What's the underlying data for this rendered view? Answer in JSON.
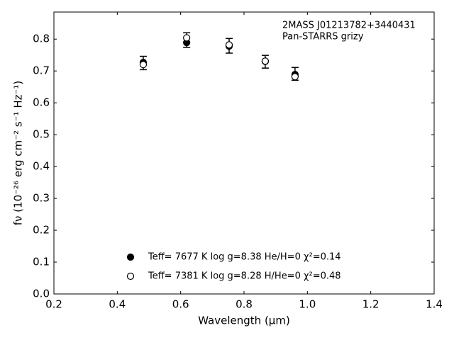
{
  "chart_data": {
    "type": "scatter",
    "xlabel": "Wavelength (μm)",
    "ylabel": "fν (10⁻²⁶ erg cm⁻² s⁻¹ Hz⁻¹)",
    "annotations": [
      "2MASS J01213782+3440431",
      "Pan-STARRS grizy"
    ],
    "x": [
      0.482,
      0.619,
      0.753,
      0.867,
      0.961
    ],
    "series": [
      {
        "values": [
          0.725,
          0.797,
          0.779,
          0.729,
          0.691
        ],
        "errors": [
          0.021,
          0.023,
          0.023,
          0.02,
          0.02
        ],
        "color": "#000000",
        "marker": "errorbar"
      },
      {
        "name": "Teff=  7677 K  log g=8.38  He/H=0  χ²=0.14",
        "values": [
          0.727,
          0.789,
          0.778,
          0.73,
          0.689
        ],
        "color": "#000000",
        "marker": "filled"
      },
      {
        "name": "Teff=  7381 K  log g=8.28  H/He=0  χ²=0.48",
        "values": [
          0.72,
          0.804,
          0.782,
          0.731,
          0.682
        ],
        "color": "#000000",
        "marker": "open"
      }
    ],
    "xlim": [
      0.2,
      1.4
    ],
    "ylim": [
      0,
      0.885
    ],
    "xticks": [
      0.2,
      0.4,
      0.6,
      0.8,
      {
        "value": 1,
        "label": "1.0"
      },
      1.2,
      1.4
    ],
    "yticks": [
      {
        "value": 0,
        "label": "0.0"
      },
      0.1,
      0.2,
      0.3,
      0.4,
      0.5,
      0.6,
      0.7,
      0.8
    ]
  }
}
